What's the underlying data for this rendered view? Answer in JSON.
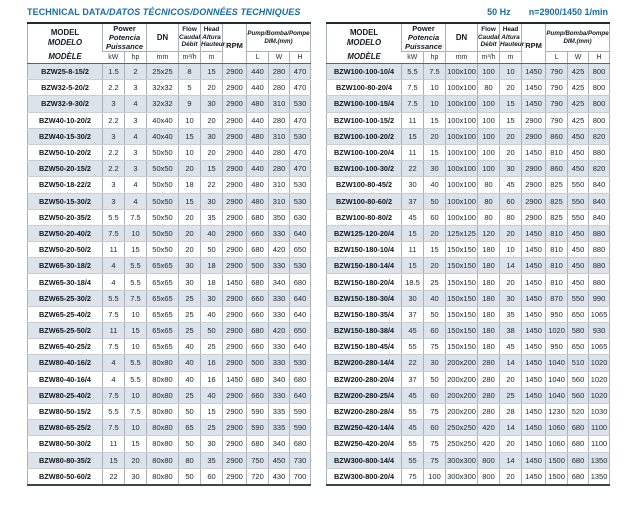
{
  "page": {
    "title_plain": "TECHNICAL DATA",
    "title_italic": "/DATOS TÉCNICOS/DONNÉES TECHNIQUES",
    "frequency": "50 Hz",
    "speed": "n=2900/1450 1/min"
  },
  "colors": {
    "accent_blue": "#1a6da6",
    "row_stripe": "#dce3ea"
  },
  "header": {
    "model_lines": [
      "MODEL",
      "MODELO",
      "MODÈLE"
    ],
    "power_lines": [
      "Power",
      "Potencia",
      "Puissance"
    ],
    "dn_label": "DN",
    "flow_lines": [
      "Flow",
      "Caudal",
      "Débit"
    ],
    "head_lines": [
      "Head",
      "Altura",
      "Hauteur"
    ],
    "rpm_label": "RPM",
    "dim_lines": [
      "Pump/Bomba/Pompe",
      "DIM.(mm)"
    ],
    "units": {
      "kw": "kW",
      "hp": "hp",
      "mm": "mm",
      "flow": "m³/h",
      "head": "m",
      "l": "L",
      "w": "W",
      "h": "H"
    }
  },
  "tables": {
    "left": {
      "rows": [
        [
          "BZW25-8-15/2",
          "1.5",
          "2",
          "25x25",
          "8",
          "15",
          "2900",
          "440",
          "280",
          "470"
        ],
        [
          "BZW32-5-20/2",
          "2.2",
          "3",
          "32x32",
          "5",
          "20",
          "2900",
          "440",
          "280",
          "470"
        ],
        [
          "BZW32-9-30/2",
          "3",
          "4",
          "32x32",
          "9",
          "30",
          "2900",
          "480",
          "310",
          "530"
        ],
        [
          "BZW40-10-20/2",
          "2.2",
          "3",
          "40x40",
          "10",
          "20",
          "2900",
          "440",
          "280",
          "470"
        ],
        [
          "BZW40-15-30/2",
          "3",
          "4",
          "40x40",
          "15",
          "30",
          "2900",
          "480",
          "310",
          "530"
        ],
        [
          "BZW50-10-20/2",
          "2.2",
          "3",
          "50x50",
          "10",
          "20",
          "2900",
          "440",
          "280",
          "470"
        ],
        [
          "BZW50-20-15/2",
          "2.2",
          "3",
          "50x50",
          "20",
          "15",
          "2900",
          "440",
          "280",
          "470"
        ],
        [
          "BZW50-18-22/2",
          "3",
          "4",
          "50x50",
          "18",
          "22",
          "2900",
          "480",
          "310",
          "530"
        ],
        [
          "BZW50-15-30/2",
          "3",
          "4",
          "50x50",
          "15",
          "30",
          "2900",
          "480",
          "310",
          "530"
        ],
        [
          "BZW50-20-35/2",
          "5.5",
          "7.5",
          "50x50",
          "20",
          "35",
          "2900",
          "680",
          "350",
          "630"
        ],
        [
          "BZW50-20-40/2",
          "7.5",
          "10",
          "50x50",
          "20",
          "40",
          "2900",
          "660",
          "330",
          "640"
        ],
        [
          "BZW50-20-50/2",
          "11",
          "15",
          "50x50",
          "20",
          "50",
          "2900",
          "680",
          "420",
          "650"
        ],
        [
          "BZW65-30-18/2",
          "4",
          "5.5",
          "65x65",
          "30",
          "18",
          "2900",
          "500",
          "330",
          "530"
        ],
        [
          "BZW65-30-18/4",
          "4",
          "5.5",
          "65x65",
          "30",
          "18",
          "1450",
          "680",
          "340",
          "680"
        ],
        [
          "BZW65-25-30/2",
          "5.5",
          "7.5",
          "65x65",
          "25",
          "30",
          "2900",
          "660",
          "330",
          "640"
        ],
        [
          "BZW65-25-40/2",
          "7.5",
          "10",
          "65x65",
          "25",
          "40",
          "2900",
          "660",
          "330",
          "640"
        ],
        [
          "BZW65-25-50/2",
          "11",
          "15",
          "65x65",
          "25",
          "50",
          "2900",
          "680",
          "420",
          "650"
        ],
        [
          "BZW65-40-25/2",
          "7.5",
          "10",
          "65x65",
          "40",
          "25",
          "2900",
          "660",
          "330",
          "640"
        ],
        [
          "BZW80-40-16/2",
          "4",
          "5.5",
          "80x80",
          "40",
          "16",
          "2900",
          "500",
          "330",
          "530"
        ],
        [
          "BZW80-40-16/4",
          "4",
          "5.5",
          "80x80",
          "40",
          "16",
          "1450",
          "680",
          "340",
          "680"
        ],
        [
          "BZW80-25-40/2",
          "7.5",
          "10",
          "80x80",
          "25",
          "40",
          "2900",
          "660",
          "330",
          "640"
        ],
        [
          "BZW80-50-15/2",
          "5.5",
          "7.5",
          "80x80",
          "50",
          "15",
          "2900",
          "590",
          "335",
          "590"
        ],
        [
          "BZW80-65-25/2",
          "7.5",
          "10",
          "80x80",
          "65",
          "25",
          "2900",
          "590",
          "335",
          "590"
        ],
        [
          "BZW80-50-30/2",
          "11",
          "15",
          "80x80",
          "50",
          "30",
          "2900",
          "680",
          "340",
          "680"
        ],
        [
          "BZW80-80-35/2",
          "15",
          "20",
          "80x80",
          "80",
          "35",
          "2900",
          "750",
          "450",
          "730"
        ],
        [
          "BZW80-50-60/2",
          "22",
          "30",
          "80x80",
          "50",
          "60",
          "2900",
          "720",
          "430",
          "700"
        ]
      ]
    },
    "right": {
      "rows": [
        [
          "BZW100-100-10/4",
          "5.5",
          "7.5",
          "100x100",
          "100",
          "10",
          "1450",
          "790",
          "425",
          "800"
        ],
        [
          "BZW100-80-20/4",
          "7.5",
          "10",
          "100x100",
          "80",
          "20",
          "1450",
          "790",
          "425",
          "800"
        ],
        [
          "BZW100-100-15/4",
          "7.5",
          "10",
          "100x100",
          "100",
          "15",
          "1450",
          "790",
          "425",
          "800"
        ],
        [
          "BZW100-100-15/2",
          "11",
          "15",
          "100x100",
          "100",
          "15",
          "2900",
          "790",
          "425",
          "800"
        ],
        [
          "BZW100-100-20/2",
          "15",
          "20",
          "100x100",
          "100",
          "20",
          "2900",
          "860",
          "450",
          "820"
        ],
        [
          "BZW100-100-20/4",
          "11",
          "15",
          "100x100",
          "100",
          "20",
          "1450",
          "810",
          "450",
          "880"
        ],
        [
          "BZW100-100-30/2",
          "22",
          "30",
          "100x100",
          "100",
          "30",
          "2900",
          "860",
          "450",
          "820"
        ],
        [
          "BZW100-80-45/2",
          "30",
          "40",
          "100x100",
          "80",
          "45",
          "2900",
          "825",
          "550",
          "840"
        ],
        [
          "BZW100-80-60/2",
          "37",
          "50",
          "100x100",
          "80",
          "60",
          "2900",
          "825",
          "550",
          "840"
        ],
        [
          "BZW100-80-80/2",
          "45",
          "60",
          "100x100",
          "80",
          "80",
          "2900",
          "825",
          "550",
          "840"
        ],
        [
          "BZW125-120-20/4",
          "15",
          "20",
          "125x125",
          "120",
          "20",
          "1450",
          "810",
          "450",
          "880"
        ],
        [
          "BZW150-180-10/4",
          "11",
          "15",
          "150x150",
          "180",
          "10",
          "1450",
          "810",
          "450",
          "880"
        ],
        [
          "BZW150-180-14/4",
          "15",
          "20",
          "150x150",
          "180",
          "14",
          "1450",
          "810",
          "450",
          "880"
        ],
        [
          "BZW150-180-20/4",
          "18.5",
          "25",
          "150x150",
          "180",
          "20",
          "1450",
          "810",
          "450",
          "880"
        ],
        [
          "BZW150-180-30/4",
          "30",
          "40",
          "150x150",
          "180",
          "30",
          "1450",
          "870",
          "550",
          "990"
        ],
        [
          "BZW150-180-35/4",
          "37",
          "50",
          "150x150",
          "180",
          "35",
          "1450",
          "950",
          "650",
          "1065"
        ],
        [
          "BZW150-180-38/4",
          "45",
          "60",
          "150x150",
          "180",
          "38",
          "1450",
          "1020",
          "580",
          "930"
        ],
        [
          "BZW150-180-45/4",
          "55",
          "75",
          "150x150",
          "180",
          "45",
          "1450",
          "950",
          "650",
          "1065"
        ],
        [
          "BZW200-280-14/4",
          "22",
          "30",
          "200x200",
          "280",
          "14",
          "1450",
          "1040",
          "510",
          "1020"
        ],
        [
          "BZW200-280-20/4",
          "37",
          "50",
          "200x200",
          "280",
          "20",
          "1450",
          "1040",
          "560",
          "1020"
        ],
        [
          "BZW200-280-25/4",
          "45",
          "60",
          "200x200",
          "280",
          "25",
          "1450",
          "1040",
          "560",
          "1020"
        ],
        [
          "BZW200-280-28/4",
          "55",
          "75",
          "200x200",
          "280",
          "28",
          "1450",
          "1230",
          "520",
          "1030"
        ],
        [
          "BZW250-420-14/4",
          "45",
          "60",
          "250x250",
          "420",
          "14",
          "1450",
          "1060",
          "680",
          "1100"
        ],
        [
          "BZW250-420-20/4",
          "55",
          "75",
          "250x250",
          "420",
          "20",
          "1450",
          "1060",
          "680",
          "1100"
        ],
        [
          "BZW300-800-14/4",
          "55",
          "75",
          "300x300",
          "800",
          "14",
          "1450",
          "1500",
          "680",
          "1350"
        ],
        [
          "BZW300-800-20/4",
          "75",
          "100",
          "300x300",
          "800",
          "20",
          "1450",
          "1500",
          "680",
          "1350"
        ]
      ]
    }
  }
}
